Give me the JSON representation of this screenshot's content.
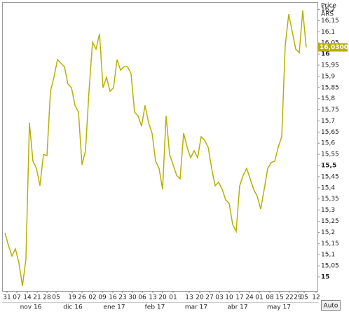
{
  "chart_data": {
    "type": "line",
    "axis_title": "Price",
    "currency": "ARS",
    "button": "Auto",
    "series": [
      {
        "color": "#b8b000",
        "values": [
          15.198,
          15.142,
          15.094,
          15.126,
          15.063,
          14.959,
          15.079,
          15.692,
          15.519,
          15.487,
          15.409,
          15.55,
          15.544,
          15.833,
          15.896,
          15.975,
          15.959,
          15.943,
          15.865,
          15.849,
          15.77,
          15.739,
          15.503,
          15.566,
          15.833,
          16.053,
          16.022,
          16.091,
          15.849,
          15.896,
          15.833,
          15.849,
          15.975,
          15.928,
          15.943,
          15.943,
          15.912,
          15.739,
          15.723,
          15.676,
          15.77,
          15.692,
          15.645,
          15.519,
          15.487,
          15.393,
          15.723,
          15.55,
          15.503,
          15.456,
          15.44,
          15.645,
          15.582,
          15.535,
          15.566,
          15.535,
          15.629,
          15.613,
          15.582,
          15.487,
          15.409,
          15.425,
          15.393,
          15.346,
          15.33,
          15.236,
          15.204,
          15.409,
          15.456,
          15.487,
          15.44,
          15.393,
          15.362,
          15.305,
          15.393,
          15.487,
          15.513,
          15.519,
          15.582,
          15.629,
          16.038,
          16.179,
          16.101,
          16.022,
          16.006,
          16.195,
          16.03
        ]
      }
    ],
    "last_value": {
      "value": 16.03,
      "label": "16,0300"
    },
    "xlim": [
      -0.8,
      89.2
    ],
    "xticks": [
      {
        "value": 0.6,
        "label": "31"
      },
      {
        "value": 3.4,
        "label": "07"
      },
      {
        "value": 6.4,
        "label": "14"
      },
      {
        "value": 9.2,
        "label": "21"
      },
      {
        "value": 12,
        "label": "28"
      },
      {
        "value": 14.6,
        "label": "05"
      },
      {
        "value": 19.2,
        "label": "19"
      },
      {
        "value": 22,
        "label": "26"
      },
      {
        "value": 25,
        "label": "02"
      },
      {
        "value": 27.8,
        "label": "09"
      },
      {
        "value": 30.8,
        "label": "16"
      },
      {
        "value": 33.6,
        "label": "23"
      },
      {
        "value": 36.4,
        "label": "30"
      },
      {
        "value": 39.2,
        "label": "06"
      },
      {
        "value": 42.2,
        "label": "13"
      },
      {
        "value": 45,
        "label": "20"
      },
      {
        "value": 48,
        "label": "01"
      },
      {
        "value": 52.6,
        "label": "13"
      },
      {
        "value": 55.6,
        "label": "20"
      },
      {
        "value": 58.4,
        "label": "27"
      },
      {
        "value": 61.2,
        "label": "03"
      },
      {
        "value": 64,
        "label": "10"
      },
      {
        "value": 67,
        "label": "17"
      },
      {
        "value": 69.8,
        "label": "24"
      },
      {
        "value": 72.6,
        "label": "01"
      },
      {
        "value": 75.6,
        "label": "08"
      },
      {
        "value": 78.4,
        "label": "15"
      },
      {
        "value": 81.2,
        "label": "22"
      },
      {
        "value": 83.6,
        "label": "29"
      },
      {
        "value": 85.4,
        "label": "05"
      },
      {
        "value": 88.8,
        "label": "12"
      }
    ],
    "months": [
      {
        "value": 7.4,
        "label": "nov 16"
      },
      {
        "value": 19.4,
        "label": "dic 16"
      },
      {
        "value": 31.2,
        "label": "ene 17"
      },
      {
        "value": 42.8,
        "label": "feb 17"
      },
      {
        "value": 54.6,
        "label": "mar 17"
      },
      {
        "value": 66.4,
        "label": "abr 17"
      },
      {
        "value": 78.2,
        "label": "may 17"
      }
    ],
    "ylim": [
      14.937,
      16.233
    ],
    "yticks": [
      15,
      {
        "value": 15.05,
        "label": "15,05"
      },
      {
        "value": 15.1,
        "label": "15,1"
      },
      {
        "value": 15.15,
        "label": "15,15"
      },
      {
        "value": 15.2,
        "label": "15,2"
      },
      {
        "value": 15.25,
        "label": "15,25"
      },
      {
        "value": 15.3,
        "label": "15,3"
      },
      {
        "value": 15.35,
        "label": "15,35"
      },
      {
        "value": 15.4,
        "label": "15,4"
      },
      {
        "value": 15.45,
        "label": "15,45"
      },
      {
        "value": 15.5,
        "label": "15,5"
      },
      {
        "value": 15.55,
        "label": "15,55"
      },
      {
        "value": 15.6,
        "label": "15,6"
      },
      {
        "value": 15.65,
        "label": "15,65"
      },
      {
        "value": 15.7,
        "label": "15,7"
      },
      {
        "value": 15.75,
        "label": "15,75"
      },
      {
        "value": 15.8,
        "label": "15,8"
      },
      {
        "value": 15.85,
        "label": "15,85"
      },
      {
        "value": 15.9,
        "label": "15,9"
      },
      {
        "value": 15.95,
        "label": "15,95"
      },
      16,
      {
        "value": 16.05,
        "label": "16,05"
      },
      {
        "value": 16.1,
        "label": "16,1"
      },
      {
        "value": 16.15,
        "label": "16,15"
      },
      {
        "value": 16.2,
        "label": "16,2"
      }
    ]
  }
}
